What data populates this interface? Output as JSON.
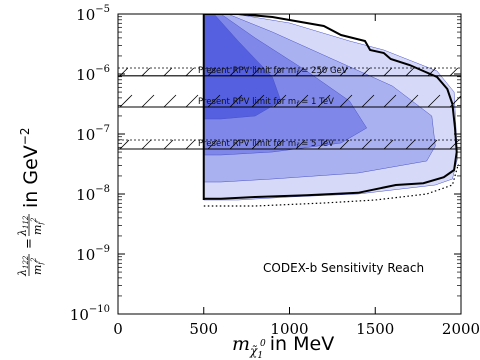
{
  "chart_data": {
    "type": "area",
    "title": "",
    "xlabel": "in MeV",
    "xlabel_math": "m",
    "xlabel_sub": "χ̃",
    "xlabel_sub2": "1",
    "xlabel_sup": "0",
    "ylabel_units": "in GeV",
    "ylabel_unit_exp": "−2",
    "ylabel_lhs_num": "λ",
    "ylabel_lhs_num_sub": "122",
    "ylabel_lhs_den": "m",
    "ylabel_lhs_den_sub": "f̃",
    "ylabel_lhs_den_sup": "2",
    "ylabel_eq": "=",
    "ylabel_rhs_num": "λ",
    "ylabel_rhs_num_sub": "112",
    "ylabel_rhs_den": "m",
    "ylabel_rhs_den_sub": "f̃",
    "ylabel_rhs_den_sup": "2",
    "xlim": [
      0,
      2000
    ],
    "ylim_log10": [
      -10,
      -5
    ],
    "yscale": "log",
    "xticks": [
      0,
      500,
      1000,
      1500,
      2000
    ],
    "yticks": [
      {
        "base": "10",
        "exp": "−5",
        "log10": -5
      },
      {
        "base": "10",
        "exp": "−6",
        "log10": -6
      },
      {
        "base": "10",
        "exp": "−7",
        "log10": -7
      },
      {
        "base": "10",
        "exp": "−8",
        "log10": -8
      },
      {
        "base": "10",
        "exp": "−9",
        "log10": -9
      },
      {
        "base": "10",
        "exp": "−10",
        "log10": -10
      }
    ],
    "grid": false,
    "regions": [
      {
        "color": "#d6daf8",
        "points": [
          [
            500,
            -5
          ],
          [
            680,
            -5
          ],
          [
            1000,
            -5.15
          ],
          [
            1350,
            -5.45
          ],
          [
            1550,
            -5.6
          ],
          [
            1860,
            -5.95
          ],
          [
            1960,
            -6.3
          ],
          [
            1980,
            -7.4
          ],
          [
            1950,
            -7.75
          ],
          [
            1850,
            -7.85
          ],
          [
            1400,
            -8.0
          ],
          [
            1000,
            -8.05
          ],
          [
            700,
            -8.1
          ],
          [
            500,
            -8.1
          ]
        ]
      },
      {
        "color": "#aab1f0",
        "points": [
          [
            500,
            -5
          ],
          [
            640,
            -5
          ],
          [
            900,
            -5.3
          ],
          [
            1250,
            -5.75
          ],
          [
            1600,
            -6.2
          ],
          [
            1830,
            -6.7
          ],
          [
            1850,
            -7.2
          ],
          [
            1800,
            -7.45
          ],
          [
            1400,
            -7.65
          ],
          [
            900,
            -7.75
          ],
          [
            600,
            -7.8
          ],
          [
            500,
            -7.8
          ]
        ]
      },
      {
        "color": "#7f88e8",
        "points": [
          [
            500,
            -5
          ],
          [
            600,
            -5
          ],
          [
            800,
            -5.4
          ],
          [
            1100,
            -5.95
          ],
          [
            1350,
            -6.45
          ],
          [
            1450,
            -6.9
          ],
          [
            1300,
            -7.15
          ],
          [
            900,
            -7.3
          ],
          [
            600,
            -7.35
          ],
          [
            500,
            -7.35
          ]
        ]
      },
      {
        "color": "#5560e0",
        "points": [
          [
            500,
            -5
          ],
          [
            560,
            -5
          ],
          [
            700,
            -5.45
          ],
          [
            900,
            -6.05
          ],
          [
            950,
            -6.45
          ],
          [
            800,
            -6.7
          ],
          [
            600,
            -6.75
          ],
          [
            500,
            -6.75
          ]
        ]
      }
    ],
    "reach_curve": [
      [
        500,
        -5
      ],
      [
        700,
        -5
      ],
      [
        900,
        -5.05
      ],
      [
        1200,
        -5.2
      ],
      [
        1300,
        -5.35
      ],
      [
        1440,
        -5.45
      ],
      [
        1470,
        -5.6
      ],
      [
        1550,
        -5.65
      ],
      [
        1590,
        -5.75
      ],
      [
        1700,
        -5.85
      ],
      [
        1780,
        -5.95
      ],
      [
        1860,
        -6.05
      ],
      [
        1920,
        -6.25
      ],
      [
        1950,
        -6.5
      ],
      [
        1965,
        -6.9
      ],
      [
        1975,
        -7.3
      ],
      [
        1960,
        -7.6
      ],
      [
        1900,
        -7.72
      ],
      [
        1780,
        -7.82
      ],
      [
        1620,
        -7.85
      ],
      [
        1400,
        -7.98
      ],
      [
        1100,
        -8.02
      ],
      [
        800,
        -8.05
      ],
      [
        600,
        -8.08
      ],
      [
        500,
        -8.08
      ]
    ],
    "dotted_curve": [
      [
        500,
        -8.2
      ],
      [
        800,
        -8.2
      ],
      [
        1200,
        -8.15
      ],
      [
        1500,
        -8.1
      ],
      [
        1800,
        -8.0
      ],
      [
        1950,
        -7.85
      ],
      [
        1985,
        -7.5
      ]
    ],
    "limits": [
      {
        "text": "Present RPV limit for m",
        "sub": "f̃",
        "tail": " = 250 GeV",
        "value_log10": -6.03,
        "upper_log10": -5.9
      },
      {
        "text": "Present RPV limit for m",
        "sub": "f̃",
        "tail": " = 1 TeV",
        "value_log10": -6.55,
        "upper_log10": -6.55
      },
      {
        "text": "Present RPV limit for m",
        "sub": "f̃",
        "tail": " = 5 TeV",
        "value_log10": -7.25,
        "upper_log10": -7.1
      }
    ],
    "inset_label": "CODEX-b Sensitivity Reach",
    "colors": {
      "reach_line": "#000000",
      "hatch": "#000000"
    }
  }
}
